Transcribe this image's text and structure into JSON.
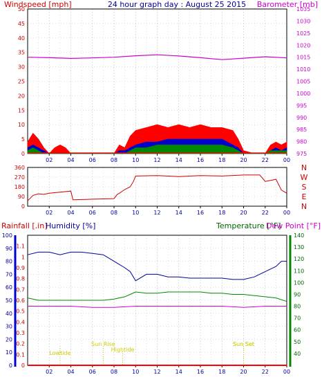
{
  "chart_data": [
    {
      "type": "line",
      "title": "24 hour graph day : August 25 2015",
      "left_axis_label": "Windspeed [mph]",
      "right_axis_label": "Barometer [mb]",
      "left_ylim": [
        0,
        50
      ],
      "left_ticks": [
        "0",
        "5",
        "10",
        "15",
        "20",
        "25",
        "30",
        "35",
        "40",
        "45",
        "50"
      ],
      "right_ylim": [
        975,
        1035
      ],
      "right_ticks": [
        "975",
        "980",
        "985",
        "990",
        "995",
        "1000",
        "1005",
        "1010",
        "1015",
        "1020",
        "1025",
        "1030",
        "1035"
      ],
      "x_tick_labels": [
        "02",
        "04",
        "06",
        "08",
        "10",
        "12",
        "14",
        "16",
        "18",
        "20",
        "22",
        "00"
      ],
      "grid": true,
      "colors": {
        "gust": "#ff0000",
        "average": "#0000cc",
        "wind": "#008800",
        "barometer": "#cc00cc"
      },
      "series": [
        {
          "key": "barometer",
          "x": [
            0,
            2,
            4,
            6,
            8,
            10,
            12,
            14,
            16,
            18,
            20,
            22,
            24
          ],
          "values": [
            1015.0,
            1014.8,
            1014.5,
            1014.7,
            1015.0,
            1015.6,
            1016.0,
            1015.5,
            1014.8,
            1014.0,
            1014.6,
            1015.2,
            1014.7
          ]
        },
        {
          "key": "gust",
          "x": [
            0,
            0.5,
            1,
            1.5,
            2,
            2.5,
            3,
            3.5,
            4,
            8,
            8.5,
            9,
            9.5,
            10,
            11,
            12,
            13,
            14,
            15,
            16,
            17,
            18,
            19,
            19.5,
            20,
            21,
            22,
            22.5,
            23,
            23.5,
            24
          ],
          "values": [
            4,
            7,
            5,
            2,
            0,
            2,
            3,
            2,
            0,
            0,
            3,
            2,
            6,
            8,
            9,
            10,
            9,
            10,
            9,
            10,
            9,
            9,
            8,
            5,
            1,
            0,
            0,
            3,
            4,
            3,
            4
          ]
        },
        {
          "key": "average",
          "x": [
            0,
            0.5,
            1,
            1.5,
            2,
            8,
            8.5,
            9,
            9.5,
            10,
            11,
            12,
            13,
            14,
            15,
            16,
            17,
            18,
            19,
            19.5,
            20,
            22,
            22.5,
            23,
            23.5,
            24
          ],
          "values": [
            2,
            3,
            2,
            1,
            0,
            0,
            1,
            1,
            2,
            3,
            4,
            4,
            5,
            5,
            5,
            5,
            5,
            5,
            3,
            2,
            0,
            0,
            1,
            2,
            1,
            2
          ]
        },
        {
          "key": "wind",
          "x": [
            0,
            0.5,
            1,
            1.5,
            2,
            8,
            9,
            9.5,
            10,
            11,
            12,
            13,
            14,
            15,
            16,
            17,
            18,
            19,
            19.5,
            20,
            22,
            22.5,
            23,
            23.5,
            24
          ],
          "values": [
            1,
            2,
            1,
            0,
            0,
            0,
            0,
            1,
            2,
            2,
            3,
            3,
            3,
            3,
            3,
            3,
            3,
            2,
            1,
            0,
            0,
            1,
            1,
            1,
            1
          ]
        }
      ]
    },
    {
      "type": "line",
      "right_axis_label": "N W S E N",
      "direction_labels": [
        "N",
        "W",
        "S",
        "E",
        "N"
      ],
      "ylim": [
        0,
        360
      ],
      "ticks": [
        "0",
        "90",
        "180",
        "270",
        "360"
      ],
      "x_tick_labels": [
        "02",
        "04",
        "06",
        "08",
        "10",
        "12",
        "14",
        "16",
        "18",
        "20",
        "22",
        "00"
      ],
      "color": "#cc0000",
      "series": [
        {
          "key": "direction",
          "x": [
            0,
            0.5,
            1,
            1.5,
            2,
            3,
            4,
            4.2,
            6,
            8,
            8.3,
            8.5,
            9,
            9.5,
            9.8,
            10,
            12,
            14,
            16,
            18,
            20,
            20.5,
            21,
            21.5,
            22,
            22.5,
            23,
            23.5,
            24
          ],
          "values": [
            50,
            100,
            115,
            110,
            120,
            130,
            140,
            60,
            65,
            70,
            110,
            120,
            155,
            180,
            230,
            280,
            285,
            275,
            285,
            280,
            290,
            290,
            290,
            290,
            230,
            240,
            250,
            150,
            120
          ]
        }
      ]
    },
    {
      "type": "line",
      "left_axis_label": "Rainfall [.in]",
      "humidity_label": "Humidity [%]",
      "temperature_label": "Temperature [°F]",
      "dewpoint_label": "Dew Point [°F]",
      "rain_ylim": [
        0,
        1.2
      ],
      "rain_ticks": [
        "0",
        "0.1",
        "0.2",
        "0.3",
        "0.4",
        "0.5",
        "0.6",
        "0.7",
        "0.8",
        "0.9",
        "1",
        "1.1"
      ],
      "humidity_ylim": [
        0,
        100
      ],
      "humidity_ticks": [
        "0",
        "10",
        "20",
        "30",
        "40",
        "50",
        "60",
        "70",
        "80",
        "90",
        "100"
      ],
      "temp_ylim": [
        30,
        140
      ],
      "temp_ticks": [
        "40",
        "50",
        "60",
        "70",
        "80",
        "90",
        "100",
        "110",
        "120",
        "130",
        "140"
      ],
      "x_tick_labels": [
        "02",
        "04",
        "06",
        "08",
        "10",
        "12",
        "14",
        "16",
        "18",
        "20",
        "22",
        "00"
      ],
      "colors": {
        "rain": "#ff0000",
        "humidity": "#000099",
        "temperature": "#008800",
        "dewpoint": "#cc00cc",
        "annotations": "#cccc00"
      },
      "annotations": [
        {
          "label": "Lowtide",
          "x": 3
        },
        {
          "label": "Sun Rise",
          "x": 7
        },
        {
          "label": "Hightide",
          "x": 8.8
        },
        {
          "label": "Sun Set",
          "x": 20
        },
        {
          "label": "Sun Set",
          "x": 20
        }
      ],
      "series": [
        {
          "key": "humidity",
          "x": [
            0,
            1,
            2,
            3,
            4,
            5,
            6,
            7,
            8,
            9,
            9.5,
            10,
            11,
            12,
            13,
            14,
            15,
            16,
            17,
            18,
            19,
            20,
            21,
            22,
            23,
            23.5,
            24
          ],
          "values": [
            85,
            87,
            87,
            85,
            87,
            87,
            86,
            85,
            80,
            75,
            72,
            65,
            70,
            70,
            68,
            68,
            67,
            67,
            67,
            67,
            66,
            66,
            68,
            72,
            76,
            80,
            80
          ]
        },
        {
          "key": "temperature",
          "x": [
            0,
            1,
            2,
            3,
            4,
            5,
            6,
            7,
            8,
            9,
            9.5,
            10,
            11,
            12,
            13,
            14,
            15,
            16,
            17,
            18,
            19,
            20,
            21,
            22,
            23,
            24
          ],
          "values": [
            87,
            85,
            85,
            85,
            85,
            85,
            85,
            85,
            86,
            88,
            90,
            92,
            91,
            91,
            92,
            92,
            92,
            92,
            91,
            91,
            90,
            90,
            89,
            88,
            87,
            84
          ]
        },
        {
          "key": "dewpoint",
          "x": [
            0,
            2,
            4,
            6,
            8,
            10,
            12,
            14,
            16,
            18,
            20,
            22,
            24
          ],
          "values": [
            80,
            80,
            80,
            79,
            79,
            80,
            80,
            80,
            80,
            80,
            79,
            80,
            80
          ]
        },
        {
          "key": "rain",
          "x": [
            0,
            24
          ],
          "values": [
            0,
            0
          ]
        }
      ]
    }
  ]
}
